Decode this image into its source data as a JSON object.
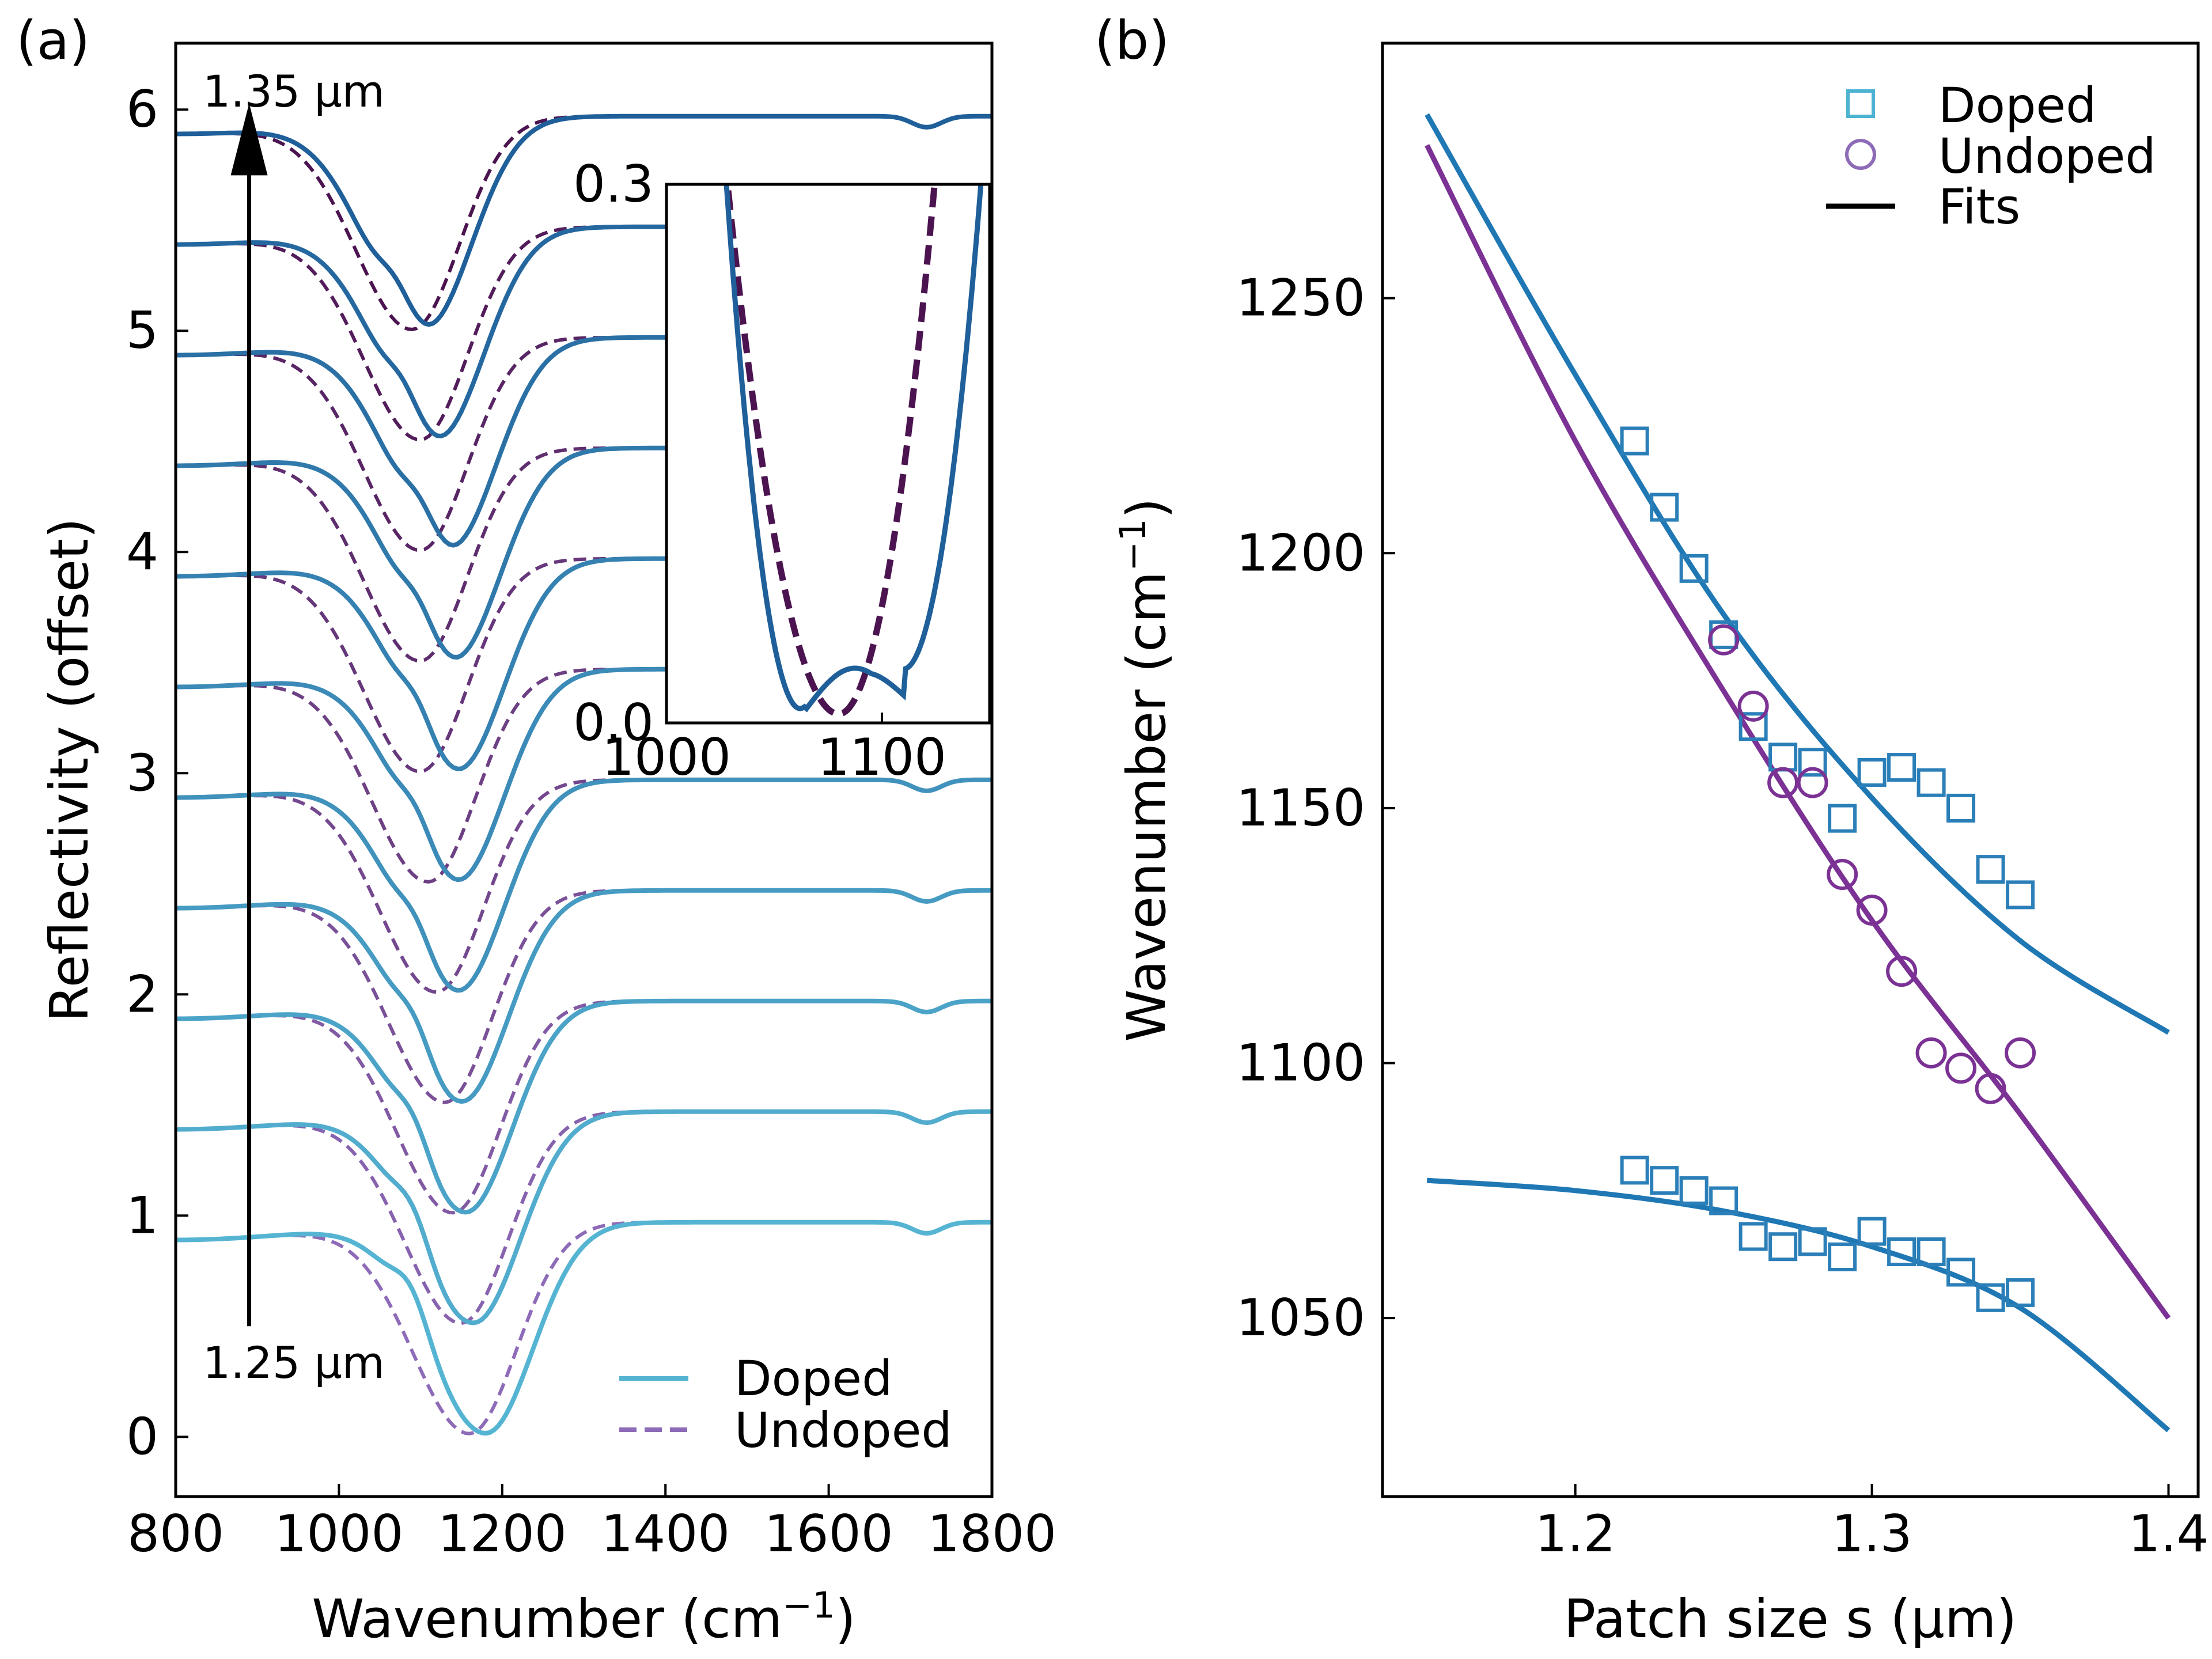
{
  "chart_data": [
    {
      "panel": "(a)",
      "type": "line",
      "xlabel": "Wavenumber (cm",
      "xlabel_sup": "−1",
      "xlabel_end": ")",
      "ylabel": "Reflectivity (offset)",
      "xlim": [
        800,
        1800
      ],
      "ylim": [
        -0.27,
        6.3
      ],
      "xticks": [
        800,
        1000,
        1200,
        1400,
        1600,
        1800
      ],
      "yticks": [
        0,
        1,
        2,
        3,
        4,
        5,
        6
      ],
      "legend": [
        "Doped",
        "Undoped"
      ],
      "legend_position": "bottom-right",
      "arrow": {
        "x": 890,
        "y_from": 0.5,
        "y_to": 5.95,
        "label_top": "1.35 μm",
        "label_bottom": "1.25 μm"
      },
      "series": [
        {
          "offset": 0.0,
          "doped_min": 1180,
          "undoped_min": 1160,
          "shoulder": 1090
        },
        {
          "offset": 0.5,
          "doped_min": 1165,
          "undoped_min": 1150,
          "shoulder": 1092
        },
        {
          "offset": 1.0,
          "doped_min": 1155,
          "undoped_min": 1140,
          "shoulder": 1093
        },
        {
          "offset": 1.5,
          "doped_min": 1150,
          "undoped_min": 1130,
          "shoulder": 1094
        },
        {
          "offset": 2.0,
          "doped_min": 1145,
          "undoped_min": 1120,
          "shoulder": 1095
        },
        {
          "offset": 2.5,
          "doped_min": 1145,
          "undoped_min": 1110,
          "shoulder": 1096
        },
        {
          "offset": 3.0,
          "doped_min": 1145,
          "undoped_min": 1100,
          "shoulder": 1097
        },
        {
          "offset": 3.5,
          "doped_min": 1140,
          "undoped_min": 1100,
          "shoulder": 1098
        },
        {
          "offset": 4.0,
          "doped_min": 1135,
          "undoped_min": 1100,
          "shoulder": 1099
        },
        {
          "offset": 4.5,
          "doped_min": 1120,
          "undoped_min": 1100,
          "shoulder": 1080
        },
        {
          "offset": 5.0,
          "doped_min": 1105,
          "undoped_min": 1090,
          "shoulder": 1070
        }
      ],
      "inset": {
        "xlim": [
          1000,
          1150
        ],
        "ylim": [
          0.0,
          0.3
        ],
        "xticks": [
          1000,
          1100
        ],
        "yticks": [
          "0.0",
          "0.3"
        ],
        "doped_min": 1065,
        "undoped_min": 1080
      },
      "colors": {
        "doped_light": "#56b4d3",
        "doped_dark": "#1f5f9a",
        "undoped_light": "#8e6bb8",
        "undoped_dark": "#4b1450"
      }
    },
    {
      "panel": "(b)",
      "type": "scatter",
      "xlabel": "Patch size s (μm)",
      "ylabel": "Wavenumber (cm",
      "ylabel_sup": "−1",
      "ylabel_end": ")",
      "xlim": [
        1.135,
        1.41
      ],
      "ylim": [
        1015,
        1300
      ],
      "xticks": [
        1.2,
        1.3,
        1.4
      ],
      "yticks": [
        1050,
        1100,
        1150,
        1200,
        1250
      ],
      "legend": [
        "Doped",
        "Undoped",
        "Fits"
      ],
      "legend_position": "top-right",
      "doped_upper": [
        [
          1.22,
          1222
        ],
        [
          1.23,
          1209
        ],
        [
          1.24,
          1197
        ],
        [
          1.25,
          1184
        ],
        [
          1.26,
          1166
        ],
        [
          1.27,
          1160
        ],
        [
          1.28,
          1159
        ],
        [
          1.29,
          1148
        ],
        [
          1.3,
          1157
        ],
        [
          1.31,
          1158
        ],
        [
          1.32,
          1155
        ],
        [
          1.33,
          1150
        ],
        [
          1.34,
          1138
        ],
        [
          1.35,
          1133
        ]
      ],
      "doped_lower": [
        [
          1.22,
          1079
        ],
        [
          1.23,
          1077
        ],
        [
          1.24,
          1075
        ],
        [
          1.25,
          1073
        ],
        [
          1.26,
          1066
        ],
        [
          1.27,
          1064
        ],
        [
          1.28,
          1065
        ],
        [
          1.29,
          1062
        ],
        [
          1.3,
          1067
        ],
        [
          1.31,
          1063
        ],
        [
          1.32,
          1063
        ],
        [
          1.33,
          1059
        ],
        [
          1.34,
          1054
        ],
        [
          1.35,
          1055
        ]
      ],
      "undoped": [
        [
          1.25,
          1183
        ],
        [
          1.26,
          1170
        ],
        [
          1.27,
          1155
        ],
        [
          1.28,
          1155
        ],
        [
          1.29,
          1137
        ],
        [
          1.3,
          1130
        ],
        [
          1.31,
          1118
        ],
        [
          1.32,
          1102
        ],
        [
          1.33,
          1099
        ],
        [
          1.34,
          1095
        ],
        [
          1.35,
          1102
        ]
      ],
      "fit_doped_upper": [
        [
          1.15,
          1286
        ],
        [
          1.2,
          1235
        ],
        [
          1.25,
          1188
        ],
        [
          1.3,
          1152
        ],
        [
          1.35,
          1124
        ],
        [
          1.4,
          1106
        ]
      ],
      "fit_undoped": [
        [
          1.15,
          1280
        ],
        [
          1.2,
          1222
        ],
        [
          1.25,
          1173
        ],
        [
          1.3,
          1128
        ],
        [
          1.35,
          1090
        ],
        [
          1.4,
          1050
        ]
      ],
      "fit_doped_lower": [
        [
          1.15,
          1077
        ],
        [
          1.2,
          1075
        ],
        [
          1.25,
          1071
        ],
        [
          1.3,
          1064
        ],
        [
          1.35,
          1052
        ],
        [
          1.4,
          1028
        ]
      ],
      "colors": {
        "doped": "#2b7fb8",
        "undoped": "#7b3294",
        "fit_doped": "#1f78b4",
        "fit_undoped": "#7b3294"
      }
    }
  ]
}
